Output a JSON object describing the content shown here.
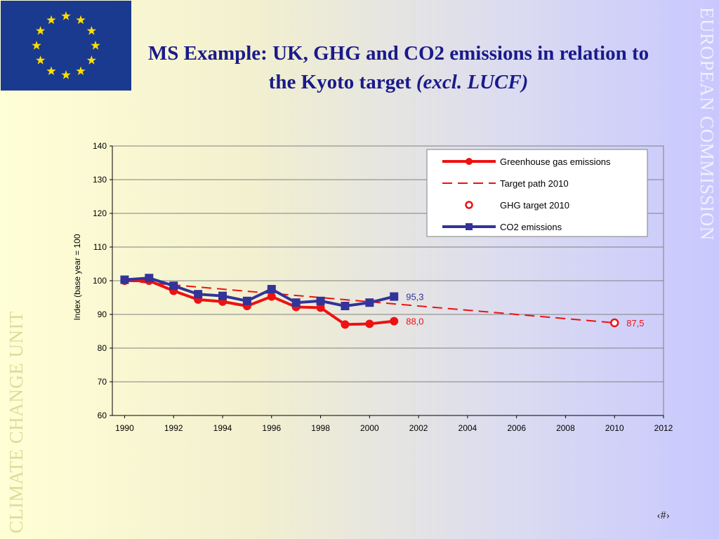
{
  "slide": {
    "title_main": "MS Example: UK, GHG and CO2 emissions in relation to the Kyoto target",
    "title_italic": "(excl. LUCF)",
    "side_right": "EUROPEAN COMMISSION",
    "side_left": "CLIMATE CHANGE UNIT",
    "slide_number": "‹#›"
  },
  "colors": {
    "ghg": "#ee1111",
    "co2": "#333399",
    "title": "#1a1a8a",
    "flag_blue": "#1a3a8f",
    "flag_star": "#ffdd00"
  },
  "chart_data": {
    "type": "line",
    "ylabel": "Index (base year = 100",
    "xlabel": "",
    "ylim": [
      60,
      140
    ],
    "xlim": [
      1989.5,
      2012
    ],
    "y_ticks": [
      60,
      70,
      80,
      90,
      100,
      110,
      120,
      130,
      140
    ],
    "x_ticks": [
      1990,
      1992,
      1994,
      1996,
      1998,
      2000,
      2002,
      2004,
      2006,
      2008,
      2010,
      2012
    ],
    "grid": "horizontal",
    "legend_position": "top-right",
    "series": [
      {
        "name": "Greenhouse gas emissions",
        "style": "solid-circle",
        "x": [
          1990,
          1991,
          1992,
          1993,
          1994,
          1995,
          1996,
          1997,
          1998,
          1999,
          2000,
          2001
        ],
        "y": [
          100,
          100,
          97,
          94.4,
          93.8,
          92.5,
          95.3,
          92.2,
          92,
          87,
          87.2,
          88
        ],
        "end_label": "88,0"
      },
      {
        "name": "Target path 2010",
        "style": "dashed",
        "x": [
          1990,
          2010
        ],
        "y": [
          100,
          87.5
        ]
      },
      {
        "name": "GHG target 2010",
        "style": "open-circle",
        "x": [
          2010
        ],
        "y": [
          87.5
        ],
        "end_label": "87,5"
      },
      {
        "name": "CO2 emissions",
        "style": "solid-square",
        "x": [
          1990,
          1991,
          1992,
          1993,
          1994,
          1995,
          1996,
          1997,
          1998,
          1999,
          2000,
          2001
        ],
        "y": [
          100.3,
          100.8,
          98.5,
          96,
          95.5,
          94,
          97.5,
          93.5,
          94,
          92.5,
          93.5,
          95.3
        ],
        "end_label": "95,3"
      }
    ]
  }
}
